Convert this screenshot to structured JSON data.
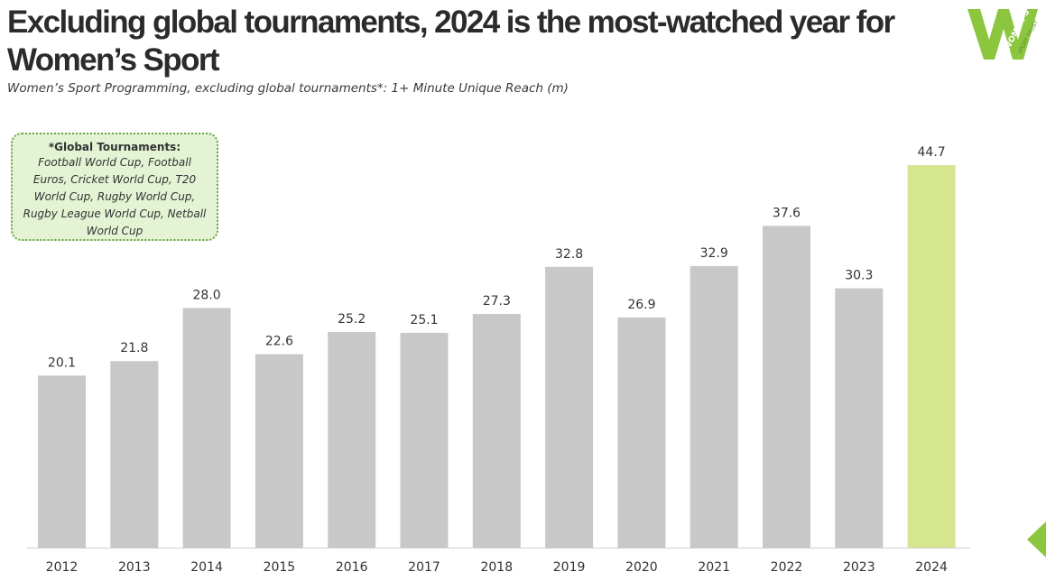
{
  "header": {
    "title": "Excluding global tournaments, 2024 is the most-watched year for Women’s Sport",
    "subtitle": "Women’s Sport Programming, excluding global tournaments*: 1+ Minute Unique Reach (m)"
  },
  "logo": {
    "letter": "W",
    "line1": "WOMEN’S",
    "line2": "SPORT TRUST",
    "color": "#8cc63f"
  },
  "note": {
    "title": "*Global Tournaments:",
    "body": "Football World Cup, Football Euros, Cricket World Cup, T20 World Cup, Rugby World Cup, Rugby League World Cup, Netball World Cup"
  },
  "colors": {
    "bar": "#c8c8c8",
    "highlight_bar": "#d6e68f",
    "axis": "#d0d0d0",
    "accent": "#8cc63f"
  },
  "chart_data": {
    "type": "bar",
    "categories": [
      "2012",
      "2013",
      "2014",
      "2015",
      "2016",
      "2017",
      "2018",
      "2019",
      "2020",
      "2021",
      "2022",
      "2023",
      "2024"
    ],
    "values": [
      20.1,
      21.8,
      28.0,
      22.6,
      25.2,
      25.1,
      27.3,
      32.8,
      26.9,
      32.9,
      37.6,
      30.3,
      44.7
    ],
    "value_labels": [
      "20.1",
      "21.8",
      "28.0",
      "22.6",
      "25.2",
      "25.1",
      "27.3",
      "32.8",
      "26.9",
      "32.9",
      "37.6",
      "30.3",
      "44.7"
    ],
    "highlight_category": "2024",
    "ylim": [
      0,
      44.7
    ],
    "grid": false,
    "legend": "none"
  }
}
